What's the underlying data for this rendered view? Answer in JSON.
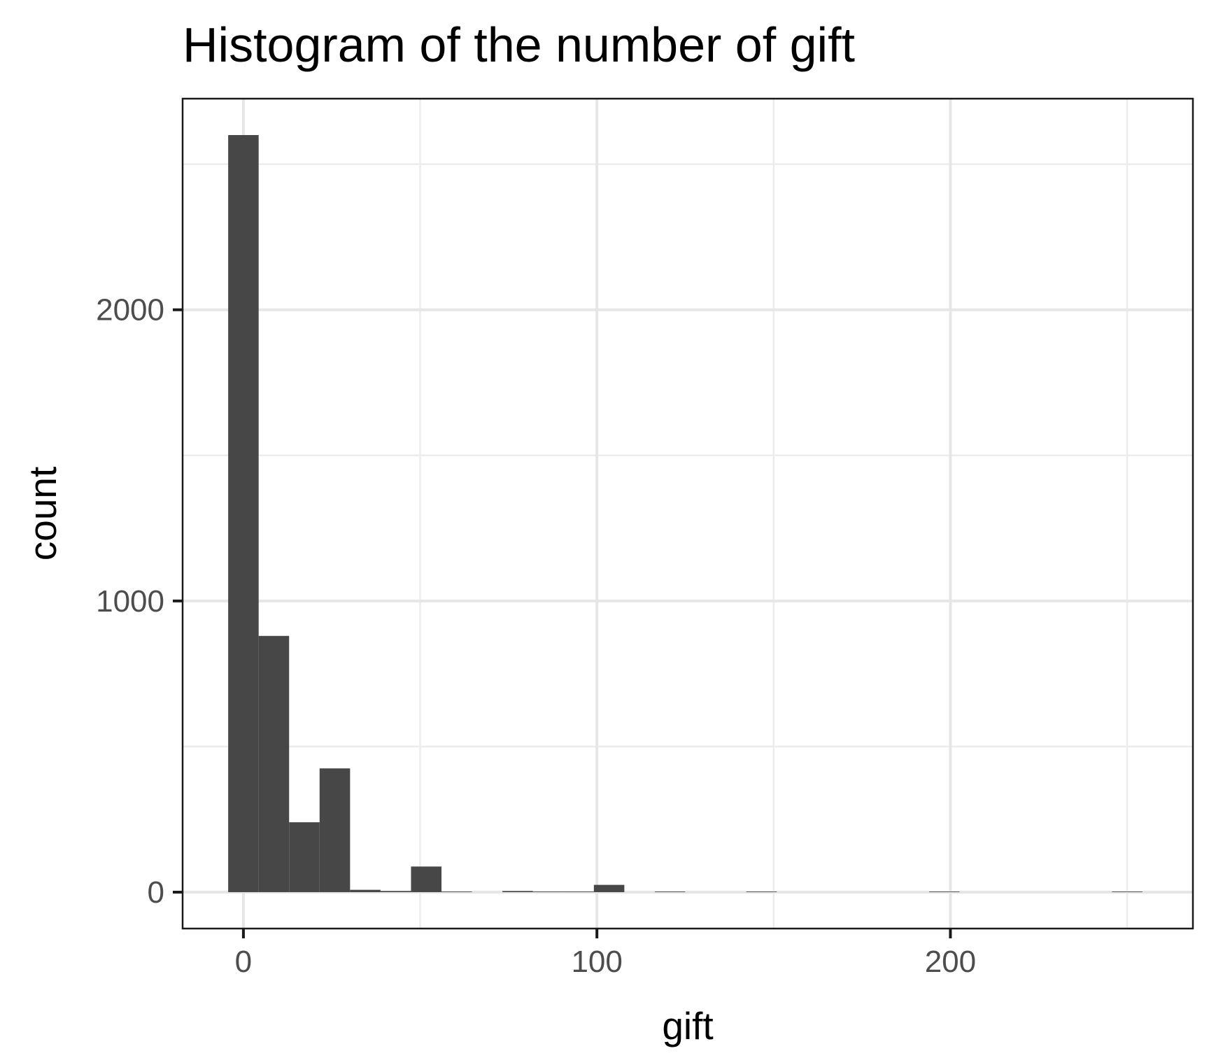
{
  "chart_data": {
    "type": "bar",
    "title": "Histogram of the number of gift",
    "xlabel": "gift",
    "ylabel": "count",
    "xlim": [
      -17.2,
      268.6
    ],
    "ylim": [
      -125,
      2725
    ],
    "x_ticks": [
      0,
      100,
      200
    ],
    "y_ticks": [
      0,
      1000,
      2000
    ],
    "x_minor_breaks": [
      50,
      150,
      250
    ],
    "y_minor_breaks": [
      500,
      1500,
      2500
    ],
    "grid": true,
    "bin_width": 8.62,
    "bins": [
      {
        "x": 0.0,
        "count": 2600
      },
      {
        "x": 8.62,
        "count": 880
      },
      {
        "x": 17.24,
        "count": 240
      },
      {
        "x": 25.86,
        "count": 425
      },
      {
        "x": 34.48,
        "count": 8
      },
      {
        "x": 43.1,
        "count": 4
      },
      {
        "x": 51.72,
        "count": 88
      },
      {
        "x": 60.34,
        "count": 2
      },
      {
        "x": 68.97,
        "count": 0
      },
      {
        "x": 77.59,
        "count": 4
      },
      {
        "x": 86.21,
        "count": 2
      },
      {
        "x": 94.83,
        "count": 2
      },
      {
        "x": 103.45,
        "count": 25
      },
      {
        "x": 112.07,
        "count": 0
      },
      {
        "x": 120.69,
        "count": 2
      },
      {
        "x": 129.31,
        "count": 0
      },
      {
        "x": 137.93,
        "count": 0
      },
      {
        "x": 146.55,
        "count": 2
      },
      {
        "x": 155.17,
        "count": 0
      },
      {
        "x": 163.79,
        "count": 0
      },
      {
        "x": 172.41,
        "count": 0
      },
      {
        "x": 181.03,
        "count": 0
      },
      {
        "x": 189.66,
        "count": 0
      },
      {
        "x": 198.28,
        "count": 2
      },
      {
        "x": 206.9,
        "count": 0
      },
      {
        "x": 215.52,
        "count": 0
      },
      {
        "x": 224.14,
        "count": 0
      },
      {
        "x": 232.76,
        "count": 0
      },
      {
        "x": 241.38,
        "count": 0
      },
      {
        "x": 250.0,
        "count": 2
      }
    ],
    "colors": {
      "bar": "#474747",
      "panel_background": "#ffffff",
      "grid": "#e6e6e6",
      "border": "#1a1a1a"
    }
  }
}
